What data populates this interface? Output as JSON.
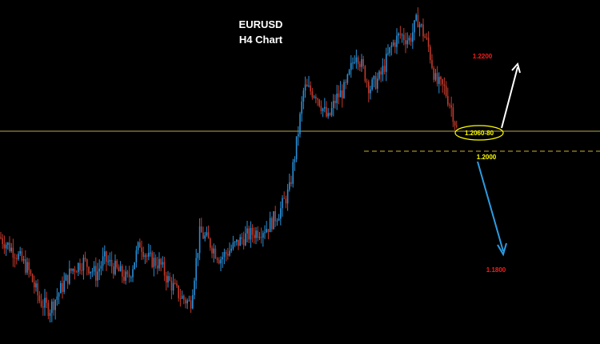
{
  "chart_data": {
    "type": "candlestick",
    "title": "EURUSD",
    "subtitle": "H4 Chart",
    "colors": {
      "background": "#000000",
      "bull_candle": "#2a8fd6",
      "bear_candle": "#c0392b",
      "support_line": "#b8a84a",
      "dashed_line": "#c9b22b",
      "target_up": "#ff1a1a",
      "target_down": "#ff1a1a",
      "level_1_2000": "#ffff00",
      "arrow_up": "#ffffff",
      "arrow_down": "#2e9be0"
    },
    "levels": [
      {
        "label": "1.2200",
        "color": "#ff1a1a"
      },
      {
        "label": "1.2060-80",
        "color": "#ffff00"
      },
      {
        "label": "1.2000",
        "color": "#ffff00"
      },
      {
        "label": "1.1800",
        "color": "#ff1a1a"
      }
    ],
    "series_shape": [
      [
        0,
        1.187
      ],
      [
        20,
        1.184
      ],
      [
        35,
        1.181
      ],
      [
        50,
        1.175
      ],
      [
        62,
        1.1735
      ],
      [
        75,
        1.177
      ],
      [
        90,
        1.181
      ],
      [
        105,
        1.1825
      ],
      [
        120,
        1.18
      ],
      [
        130,
        1.183
      ],
      [
        145,
        1.181
      ],
      [
        160,
        1.179
      ],
      [
        175,
        1.186
      ],
      [
        185,
        1.183
      ],
      [
        200,
        1.182
      ],
      [
        210,
        1.179
      ],
      [
        225,
        1.176
      ],
      [
        238,
        1.1745
      ],
      [
        250,
        1.188
      ],
      [
        262,
        1.186
      ],
      [
        275,
        1.183
      ],
      [
        290,
        1.185
      ],
      [
        305,
        1.187
      ],
      [
        320,
        1.188
      ],
      [
        335,
        1.189
      ],
      [
        350,
        1.192
      ],
      [
        362,
        1.196
      ],
      [
        372,
        1.206
      ],
      [
        380,
        1.215
      ],
      [
        395,
        1.214
      ],
      [
        410,
        1.209
      ],
      [
        420,
        1.213
      ],
      [
        432,
        1.215
      ],
      [
        445,
        1.222
      ],
      [
        455,
        1.218
      ],
      [
        462,
        1.215
      ],
      [
        475,
        1.217
      ],
      [
        490,
        1.223
      ],
      [
        500,
        1.225
      ],
      [
        512,
        1.224
      ],
      [
        522,
        1.228
      ],
      [
        535,
        1.223
      ],
      [
        545,
        1.216
      ],
      [
        555,
        1.215
      ],
      [
        565,
        1.211
      ],
      [
        572,
        1.2065
      ]
    ]
  }
}
